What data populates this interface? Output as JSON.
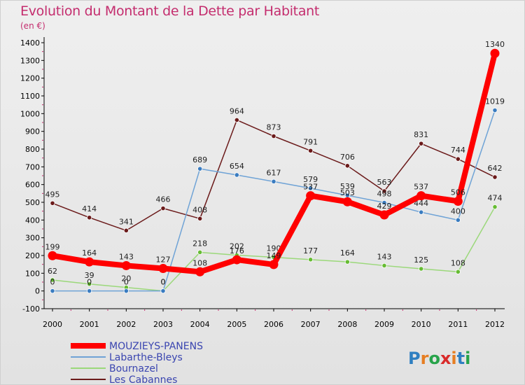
{
  "title": "Evolution du Montant de la Dette par Habitant",
  "subtitle": "(en €)",
  "logo_text": "Proxiti",
  "chart_data": {
    "type": "line",
    "title": "Evolution du Montant de la Dette par Habitant",
    "subtitle": "(en €)",
    "x": [
      "2000",
      "2001",
      "2002",
      "2003",
      "2004",
      "2005",
      "2006",
      "2007",
      "2008",
      "2009",
      "2010",
      "2011",
      "2012"
    ],
    "ylim": [
      -100,
      1400
    ],
    "yticks": [
      -100,
      0,
      100,
      200,
      300,
      400,
      500,
      600,
      700,
      800,
      900,
      1000,
      1100,
      1200,
      1300,
      1400
    ],
    "grid": false,
    "legend_position": "bottom-left",
    "series": [
      {
        "name": "Les Cabannes",
        "color": "#6b1a1a",
        "values": [
          495,
          414,
          341,
          466,
          408,
          964,
          873,
          791,
          706,
          563,
          831,
          744,
          642
        ]
      },
      {
        "name": "Bournazel",
        "color": "#9bd87a",
        "point_color": "#66bb33",
        "values": [
          62,
          39,
          20,
          0,
          218,
          202,
          190,
          177,
          164,
          143,
          125,
          108,
          474
        ]
      },
      {
        "name": "Labarthe-Bleys",
        "color": "#6fa3d6",
        "point_color": "#3a7cc0",
        "values": [
          0,
          0,
          0,
          0,
          689,
          654,
          617,
          579,
          539,
          498,
          444,
          400,
          1019
        ]
      },
      {
        "name": "MOUZIEYS-PANENS",
        "color": "#ff0000",
        "values": [
          199,
          164,
          143,
          127,
          108,
          176,
          149,
          537,
          503,
          429,
          537,
          506,
          1340
        ]
      }
    ],
    "legend_order": [
      "MOUZIEYS-PANENS",
      "Labarthe-Bleys",
      "Bournazel",
      "Les Cabannes"
    ]
  }
}
